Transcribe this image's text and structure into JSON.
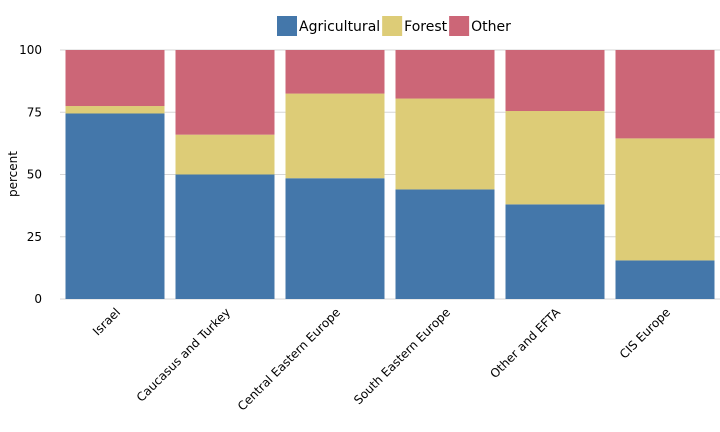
{
  "chart_data": {
    "type": "bar",
    "stacked": true,
    "ylabel": "percent",
    "xlabel": "",
    "ylim": [
      0,
      100
    ],
    "yticks": [
      0,
      25,
      50,
      75,
      100
    ],
    "grid": true,
    "legend_position": "top",
    "categories": [
      "Israel",
      "Caucasus and Turkey",
      "Central Eastern Europe",
      "South Eastern Europe",
      "Other and EFTA",
      "CIS Europe"
    ],
    "series": [
      {
        "name": "Agricultural",
        "color": "#4477aa",
        "values": [
          74.5,
          50,
          48.5,
          44,
          38,
          15.5
        ]
      },
      {
        "name": "Forest",
        "color": "#ddcc77",
        "values": [
          3,
          16,
          34,
          36.5,
          37.5,
          49
        ]
      },
      {
        "name": "Other",
        "color": "#cc6677",
        "values": [
          22.5,
          34,
          17.5,
          19.5,
          24.5,
          35.5
        ]
      }
    ]
  }
}
